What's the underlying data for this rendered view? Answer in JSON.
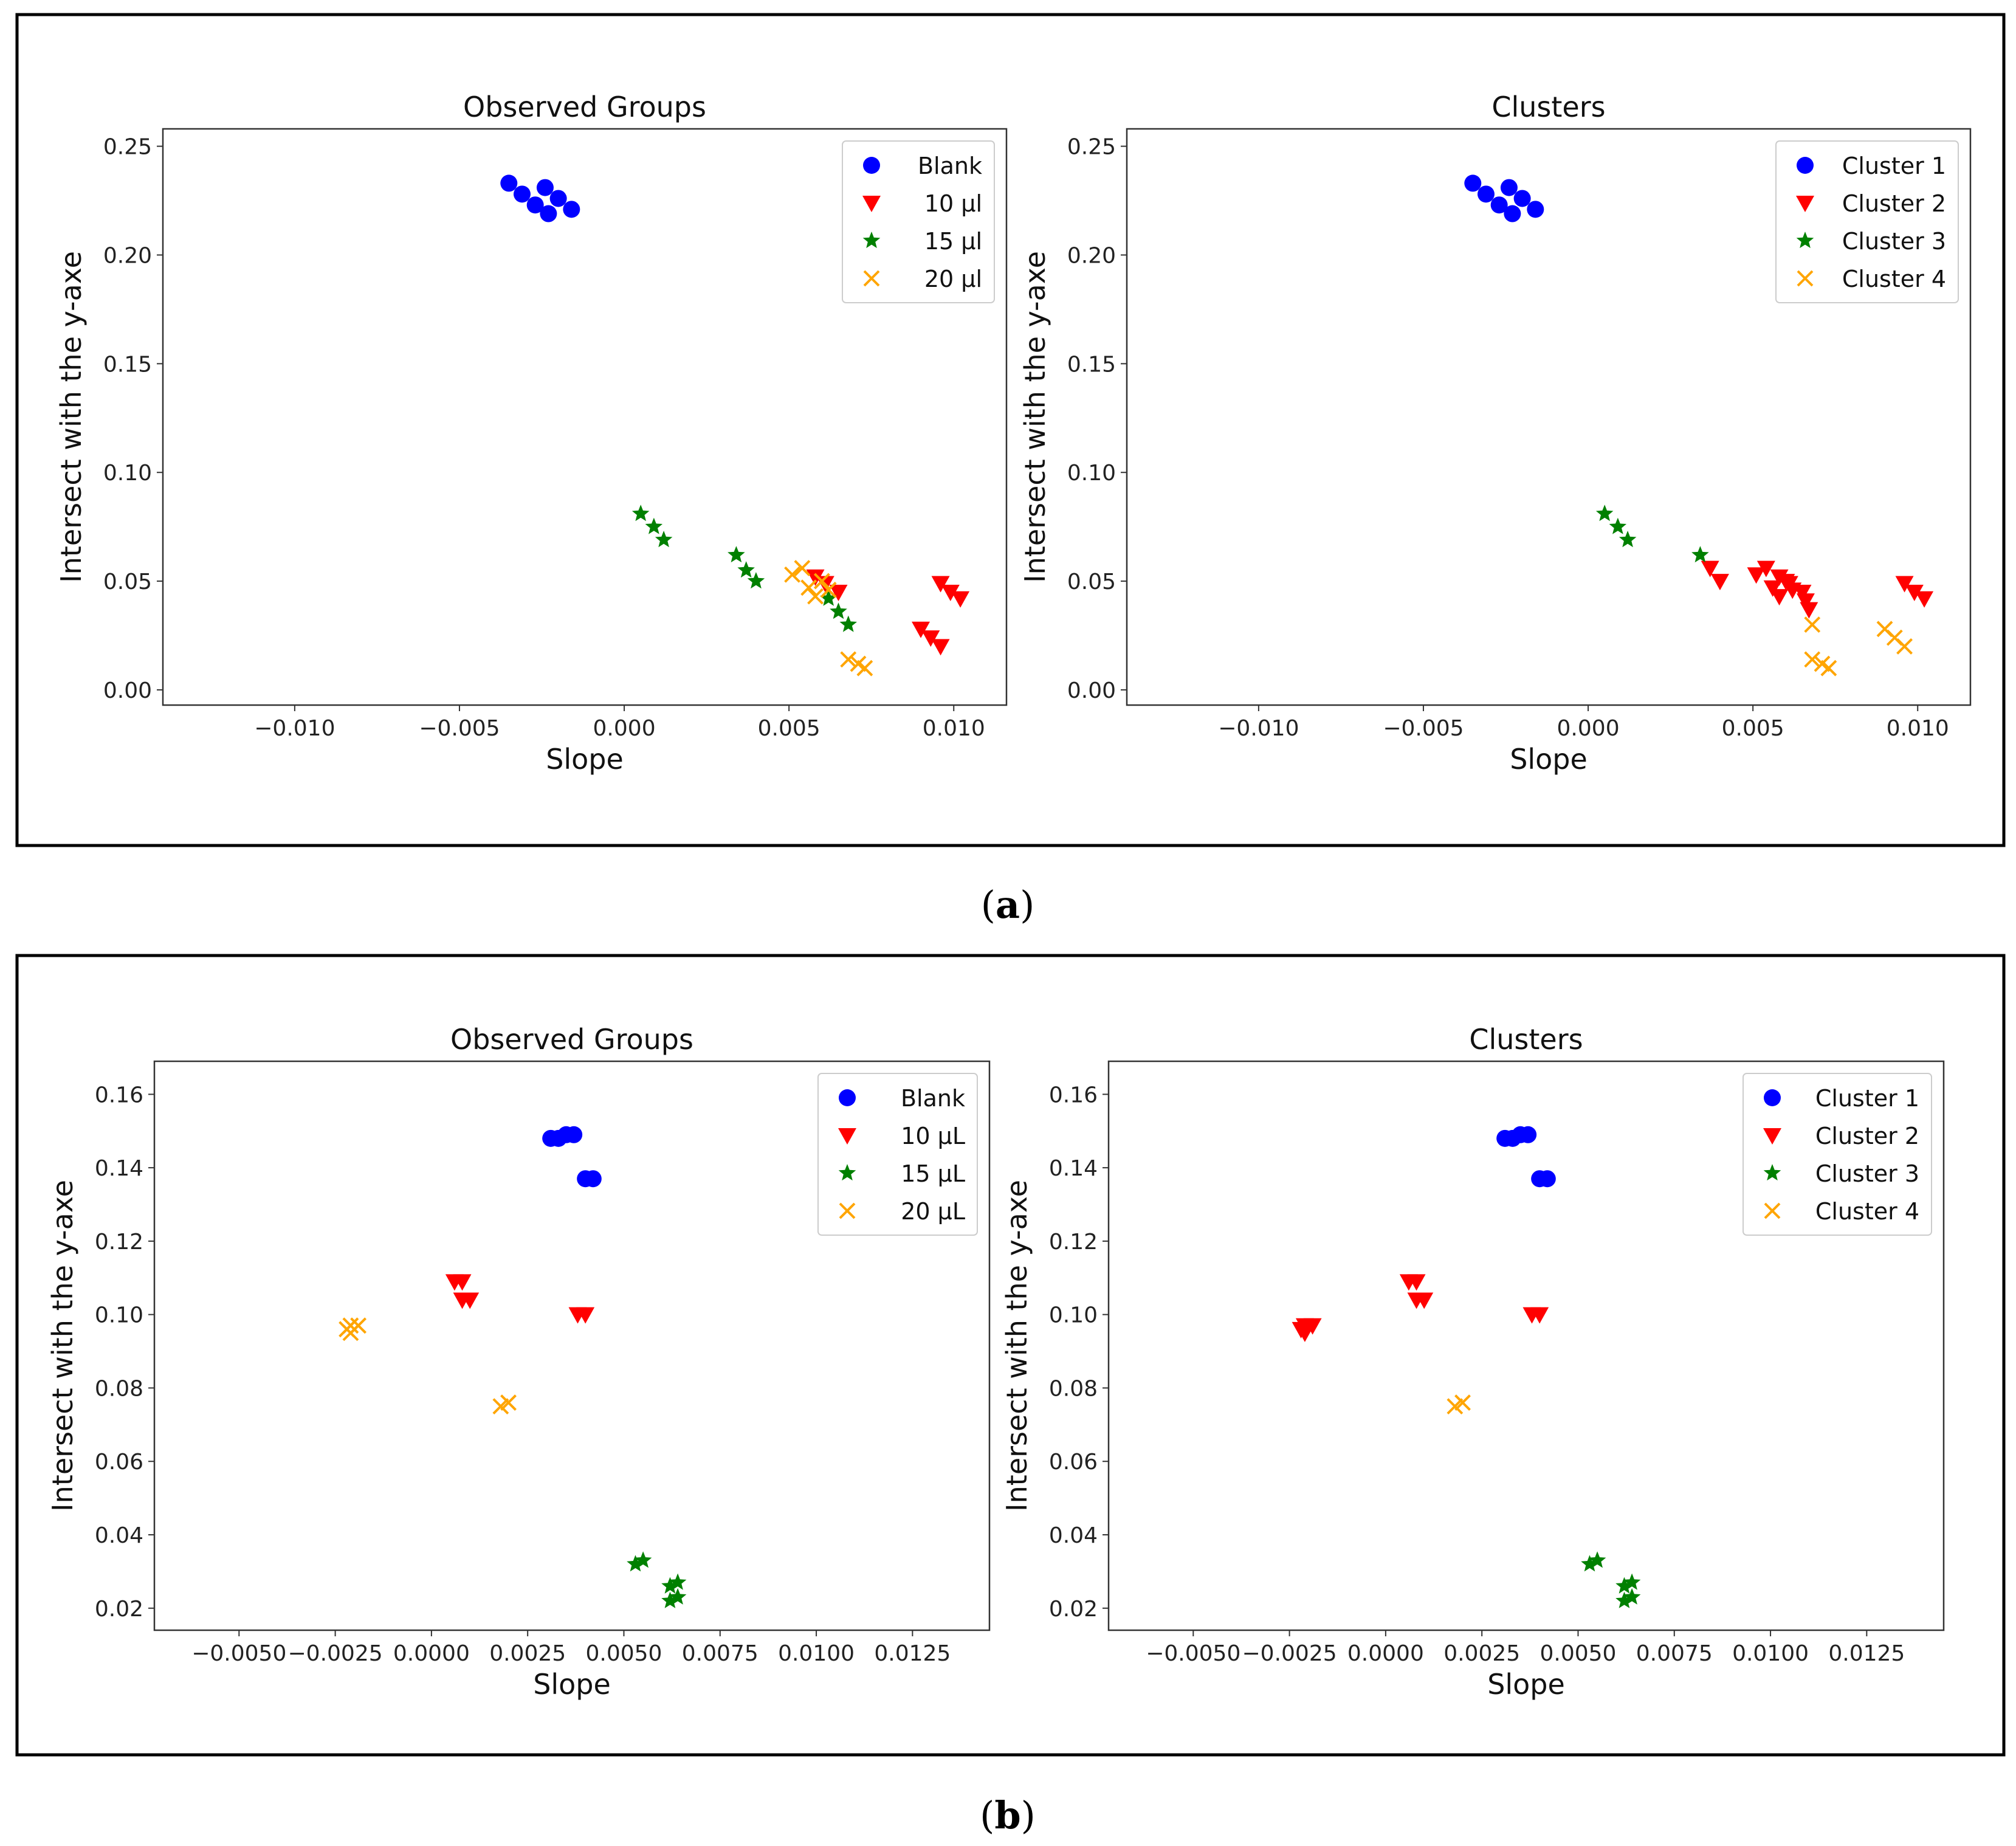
{
  "panels": [
    {
      "caption_letter": "a",
      "charts": [
        {
          "type": "scatter",
          "title": "Observed Groups",
          "xlabel": "Slope",
          "ylabel": "Intersect with the y-axe",
          "xlim": [
            -0.014,
            0.0116
          ],
          "ylim": [
            -0.007,
            0.258
          ],
          "xticks": [
            -0.01,
            -0.005,
            0.0,
            0.005,
            0.01
          ],
          "xtick_labels": [
            "−0.010",
            "−0.005",
            "0.000",
            "0.005",
            "0.010"
          ],
          "yticks": [
            0.0,
            0.05,
            0.1,
            0.15,
            0.2,
            0.25
          ],
          "ytick_labels": [
            "0.00",
            "0.05",
            "0.10",
            "0.15",
            "0.20",
            "0.25"
          ],
          "legend_position": "top-right",
          "series": [
            {
              "name": "Blank",
              "marker": "circle",
              "color": "#0000ff",
              "points": [
                [
                  -0.0035,
                  0.233
                ],
                [
                  -0.0031,
                  0.228
                ],
                [
                  -0.0027,
                  0.223
                ],
                [
                  -0.0024,
                  0.231
                ],
                [
                  -0.0023,
                  0.219
                ],
                [
                  -0.002,
                  0.226
                ],
                [
                  -0.0016,
                  0.221
                ]
              ]
            },
            {
              "name": "10 μl",
              "marker": "triangle_down",
              "color": "#ff0000",
              "points": [
                [
                  0.0058,
                  0.052
                ],
                [
                  0.0061,
                  0.049
                ],
                [
                  0.0065,
                  0.045
                ],
                [
                  0.0096,
                  0.049
                ],
                [
                  0.0099,
                  0.045
                ],
                [
                  0.0102,
                  0.042
                ],
                [
                  0.009,
                  0.028
                ],
                [
                  0.0093,
                  0.024
                ],
                [
                  0.0096,
                  0.02
                ]
              ]
            },
            {
              "name": "15 μl",
              "marker": "star",
              "color": "#008000",
              "points": [
                [
                  0.0005,
                  0.081
                ],
                [
                  0.0009,
                  0.075
                ],
                [
                  0.0012,
                  0.069
                ],
                [
                  0.0034,
                  0.062
                ],
                [
                  0.0037,
                  0.055
                ],
                [
                  0.004,
                  0.05
                ],
                [
                  0.0062,
                  0.042
                ],
                [
                  0.0065,
                  0.036
                ],
                [
                  0.0068,
                  0.03
                ]
              ]
            },
            {
              "name": "20 μl",
              "marker": "x",
              "color": "#ffa500",
              "points": [
                [
                  0.0051,
                  0.053
                ],
                [
                  0.0054,
                  0.056
                ],
                [
                  0.0056,
                  0.047
                ],
                [
                  0.0058,
                  0.043
                ],
                [
                  0.006,
                  0.05
                ],
                [
                  0.0062,
                  0.046
                ],
                [
                  0.0068,
                  0.014
                ],
                [
                  0.0071,
                  0.012
                ],
                [
                  0.0073,
                  0.01
                ]
              ]
            }
          ]
        },
        {
          "type": "scatter",
          "title": "Clusters",
          "xlabel": "Slope",
          "ylabel": "Intersect with the y-axe",
          "xlim": [
            -0.014,
            0.0116
          ],
          "ylim": [
            -0.007,
            0.258
          ],
          "xticks": [
            -0.01,
            -0.005,
            0.0,
            0.005,
            0.01
          ],
          "xtick_labels": [
            "−0.010",
            "−0.005",
            "0.000",
            "0.005",
            "0.010"
          ],
          "yticks": [
            0.0,
            0.05,
            0.1,
            0.15,
            0.2,
            0.25
          ],
          "ytick_labels": [
            "0.00",
            "0.05",
            "0.10",
            "0.15",
            "0.20",
            "0.25"
          ],
          "legend_position": "top-right",
          "series": [
            {
              "name": "Cluster 1",
              "marker": "circle",
              "color": "#0000ff",
              "points": [
                [
                  -0.0035,
                  0.233
                ],
                [
                  -0.0031,
                  0.228
                ],
                [
                  -0.0027,
                  0.223
                ],
                [
                  -0.0024,
                  0.231
                ],
                [
                  -0.0023,
                  0.219
                ],
                [
                  -0.002,
                  0.226
                ],
                [
                  -0.0016,
                  0.221
                ]
              ]
            },
            {
              "name": "Cluster 2",
              "marker": "triangle_down",
              "color": "#ff0000",
              "points": [
                [
                  0.0037,
                  0.056
                ],
                [
                  0.004,
                  0.05
                ],
                [
                  0.0051,
                  0.053
                ],
                [
                  0.0054,
                  0.056
                ],
                [
                  0.0056,
                  0.047
                ],
                [
                  0.0058,
                  0.043
                ],
                [
                  0.0058,
                  0.052
                ],
                [
                  0.006,
                  0.05
                ],
                [
                  0.0061,
                  0.049
                ],
                [
                  0.0062,
                  0.046
                ],
                [
                  0.0065,
                  0.045
                ],
                [
                  0.0066,
                  0.041
                ],
                [
                  0.0067,
                  0.037
                ],
                [
                  0.0096,
                  0.049
                ],
                [
                  0.0099,
                  0.045
                ],
                [
                  0.0102,
                  0.042
                ]
              ]
            },
            {
              "name": "Cluster 3",
              "marker": "star",
              "color": "#008000",
              "points": [
                [
                  0.0005,
                  0.081
                ],
                [
                  0.0009,
                  0.075
                ],
                [
                  0.0012,
                  0.069
                ],
                [
                  0.0034,
                  0.062
                ]
              ]
            },
            {
              "name": "Cluster 4",
              "marker": "x",
              "color": "#ffa500",
              "points": [
                [
                  0.0068,
                  0.03
                ],
                [
                  0.0068,
                  0.014
                ],
                [
                  0.0071,
                  0.012
                ],
                [
                  0.0073,
                  0.01
                ],
                [
                  0.009,
                  0.028
                ],
                [
                  0.0093,
                  0.024
                ],
                [
                  0.0096,
                  0.02
                ]
              ]
            }
          ]
        }
      ]
    },
    {
      "caption_letter": "b",
      "charts": [
        {
          "type": "scatter",
          "title": "Observed Groups",
          "xlabel": "Slope",
          "ylabel": "Intersect with the y-axe",
          "xlim": [
            -0.0072,
            0.0145
          ],
          "ylim": [
            0.014,
            0.169
          ],
          "xticks": [
            -0.005,
            -0.0025,
            0.0,
            0.0025,
            0.005,
            0.0075,
            0.01,
            0.0125
          ],
          "xtick_labels": [
            "−0.0050",
            "−0.0025",
            "0.0000",
            "0.0025",
            "0.0050",
            "0.0075",
            "0.0100",
            "0.0125"
          ],
          "yticks": [
            0.02,
            0.04,
            0.06,
            0.08,
            0.1,
            0.12,
            0.14,
            0.16
          ],
          "ytick_labels": [
            "0.02",
            "0.04",
            "0.06",
            "0.08",
            "0.10",
            "0.12",
            "0.14",
            "0.16"
          ],
          "legend_position": "top-right",
          "series": [
            {
              "name": "Blank",
              "marker": "circle",
              "color": "#0000ff",
              "points": [
                [
                  0.0031,
                  0.148
                ],
                [
                  0.0033,
                  0.148
                ],
                [
                  0.0035,
                  0.149
                ],
                [
                  0.0037,
                  0.149
                ],
                [
                  0.004,
                  0.137
                ],
                [
                  0.0042,
                  0.137
                ]
              ]
            },
            {
              "name": "10 μL",
              "marker": "triangle_down",
              "color": "#ff0000",
              "points": [
                [
                  0.0006,
                  0.109
                ],
                [
                  0.0008,
                  0.109
                ],
                [
                  0.0008,
                  0.104
                ],
                [
                  0.001,
                  0.104
                ],
                [
                  0.0038,
                  0.1
                ],
                [
                  0.004,
                  0.1
                ]
              ]
            },
            {
              "name": "15 μL",
              "marker": "star",
              "color": "#008000",
              "points": [
                [
                  0.0053,
                  0.032
                ],
                [
                  0.0055,
                  0.033
                ],
                [
                  0.0062,
                  0.026
                ],
                [
                  0.0064,
                  0.027
                ],
                [
                  0.0062,
                  0.022
                ],
                [
                  0.0064,
                  0.023
                ]
              ]
            },
            {
              "name": "20 μL",
              "marker": "x",
              "color": "#ffa500",
              "points": [
                [
                  -0.0022,
                  0.096
                ],
                [
                  -0.0021,
                  0.097
                ],
                [
                  -0.0019,
                  0.097
                ],
                [
                  -0.0021,
                  0.095
                ],
                [
                  0.0018,
                  0.075
                ],
                [
                  0.002,
                  0.076
                ]
              ]
            }
          ]
        },
        {
          "type": "scatter",
          "title": "Clusters",
          "xlabel": "Slope",
          "ylabel": "Intersect with the y-axe",
          "xlim": [
            -0.0072,
            0.0145
          ],
          "ylim": [
            0.014,
            0.169
          ],
          "xticks": [
            -0.005,
            -0.0025,
            0.0,
            0.0025,
            0.005,
            0.0075,
            0.01,
            0.0125
          ],
          "xtick_labels": [
            "−0.0050",
            "−0.0025",
            "0.0000",
            "0.0025",
            "0.0050",
            "0.0075",
            "0.0100",
            "0.0125"
          ],
          "yticks": [
            0.02,
            0.04,
            0.06,
            0.08,
            0.1,
            0.12,
            0.14,
            0.16
          ],
          "ytick_labels": [
            "0.02",
            "0.04",
            "0.06",
            "0.08",
            "0.10",
            "0.12",
            "0.14",
            "0.16"
          ],
          "legend_position": "top-right",
          "series": [
            {
              "name": "Cluster 1",
              "marker": "circle",
              "color": "#0000ff",
              "points": [
                [
                  0.0031,
                  0.148
                ],
                [
                  0.0033,
                  0.148
                ],
                [
                  0.0035,
                  0.149
                ],
                [
                  0.0037,
                  0.149
                ],
                [
                  0.004,
                  0.137
                ],
                [
                  0.0042,
                  0.137
                ]
              ]
            },
            {
              "name": "Cluster 2",
              "marker": "triangle_down",
              "color": "#ff0000",
              "points": [
                [
                  -0.0022,
                  0.096
                ],
                [
                  -0.0021,
                  0.097
                ],
                [
                  -0.0019,
                  0.097
                ],
                [
                  -0.0021,
                  0.095
                ],
                [
                  0.0006,
                  0.109
                ],
                [
                  0.0008,
                  0.109
                ],
                [
                  0.0008,
                  0.104
                ],
                [
                  0.001,
                  0.104
                ],
                [
                  0.0038,
                  0.1
                ],
                [
                  0.004,
                  0.1
                ]
              ]
            },
            {
              "name": "Cluster 3",
              "marker": "star",
              "color": "#008000",
              "points": [
                [
                  0.0053,
                  0.032
                ],
                [
                  0.0055,
                  0.033
                ],
                [
                  0.0062,
                  0.026
                ],
                [
                  0.0064,
                  0.027
                ],
                [
                  0.0062,
                  0.022
                ],
                [
                  0.0064,
                  0.023
                ]
              ]
            },
            {
              "name": "Cluster 4",
              "marker": "x",
              "color": "#ffa500",
              "points": [
                [
                  0.0018,
                  0.075
                ],
                [
                  0.002,
                  0.076
                ]
              ]
            }
          ]
        }
      ]
    }
  ]
}
